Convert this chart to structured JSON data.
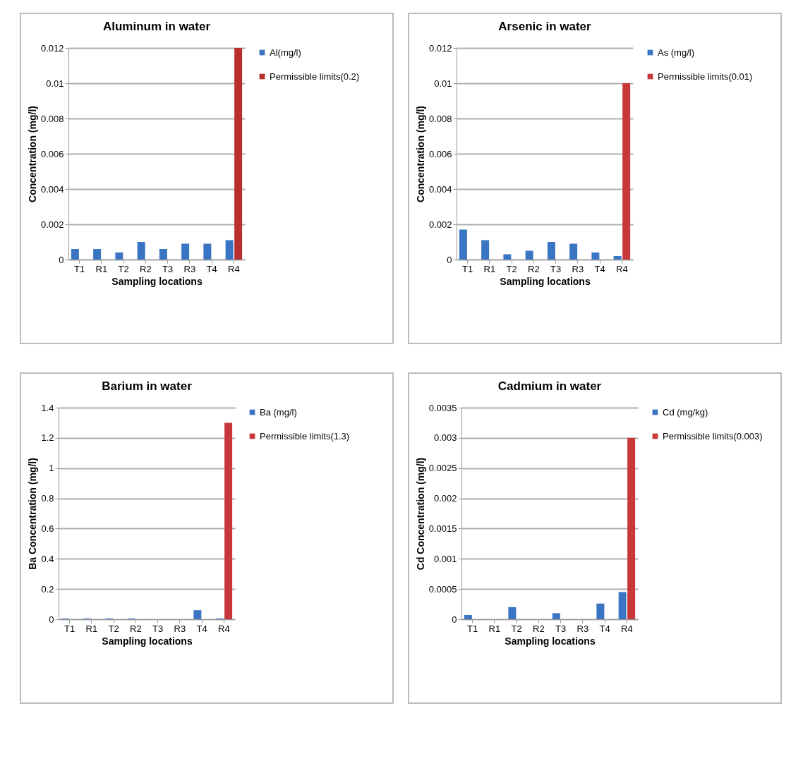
{
  "chart_data": [
    {
      "type": "bar",
      "title": "Aluminum in water",
      "xlabel": "Sampling locations",
      "ylabel": "Concentration (mg/l)",
      "categories": [
        "T1",
        "R1",
        "T2",
        "R2",
        "T3",
        "R3",
        "T4",
        "R4"
      ],
      "series": [
        {
          "name": "Al(mg/l)",
          "color": "#3a75c4",
          "values": [
            0.0006,
            0.0006,
            0.0004,
            0.001,
            0.0006,
            0.0009,
            0.0009,
            0.0011
          ]
        },
        {
          "name": "Permissible limits(0.2)",
          "color": "#b8302e",
          "values": [
            null,
            null,
            null,
            null,
            null,
            null,
            null,
            0.012
          ]
        }
      ],
      "ylim": [
        0,
        0.012
      ],
      "yticks": [
        0,
        0.002,
        0.004,
        0.006,
        0.008,
        0.01,
        0.012
      ],
      "grid": "y",
      "legend": "right"
    },
    {
      "type": "bar",
      "title": "Arsenic in water",
      "xlabel": "Sampling locations",
      "ylabel": "Concentration (mg/l)",
      "categories": [
        "T1",
        "R1",
        "T2",
        "R2",
        "T3",
        "R3",
        "T4",
        "R4"
      ],
      "series": [
        {
          "name": "As (mg/l)",
          "color": "#3a75c4",
          "values": [
            0.0017,
            0.0011,
            0.0003,
            0.0005,
            0.001,
            0.0009,
            0.0004,
            0.0002
          ]
        },
        {
          "name": "Permissible limits(0.01)",
          "color": "#c8383a",
          "values": [
            null,
            null,
            null,
            null,
            null,
            null,
            null,
            0.01
          ]
        }
      ],
      "ylim": [
        0,
        0.012
      ],
      "yticks": [
        0,
        0.002,
        0.004,
        0.006,
        0.008,
        0.01,
        0.012
      ],
      "grid": "y",
      "legend": "right"
    },
    {
      "type": "bar",
      "title": "Barium in water",
      "xlabel": "Sampling locations",
      "ylabel": "Ba Concentration (mg/l)",
      "categories": [
        "T1",
        "R1",
        "T2",
        "R2",
        "T3",
        "R3",
        "T4",
        "R4"
      ],
      "series": [
        {
          "name": "Ba (mg/l)",
          "color": "#3a75c4",
          "values": [
            0.005,
            0.005,
            0.005,
            0.005,
            0,
            0,
            0.06,
            0.005
          ]
        },
        {
          "name": "Permissible limits(1.3)",
          "color": "#c8383a",
          "values": [
            null,
            null,
            null,
            null,
            null,
            null,
            null,
            1.3
          ]
        }
      ],
      "ylim": [
        0,
        1.4
      ],
      "yticks": [
        0,
        0.2,
        0.4,
        0.6,
        0.8,
        1,
        1.2,
        1.4
      ],
      "grid": "y",
      "legend": "right"
    },
    {
      "type": "bar",
      "title": "Cadmium in water",
      "xlabel": "Sampling locations",
      "ylabel": "Cd Concentration (mg/l)",
      "categories": [
        "T1",
        "R1",
        "T2",
        "R2",
        "T3",
        "R3",
        "T4",
        "R4"
      ],
      "series": [
        {
          "name": "Cd (mg/kg)",
          "color": "#3a75c4",
          "values": [
            7e-05,
            0,
            0.0002,
            0,
            0.0001,
            0,
            0.00026,
            0.00045
          ]
        },
        {
          "name": "Permissible limits(0.003)",
          "color": "#c8383a",
          "values": [
            null,
            null,
            null,
            null,
            null,
            null,
            null,
            0.003
          ]
        }
      ],
      "ylim": [
        0,
        0.0035
      ],
      "yticks": [
        0,
        0.0005,
        0.001,
        0.0015,
        0.002,
        0.0025,
        0.003,
        0.0035
      ],
      "grid": "y",
      "legend": "right"
    }
  ]
}
